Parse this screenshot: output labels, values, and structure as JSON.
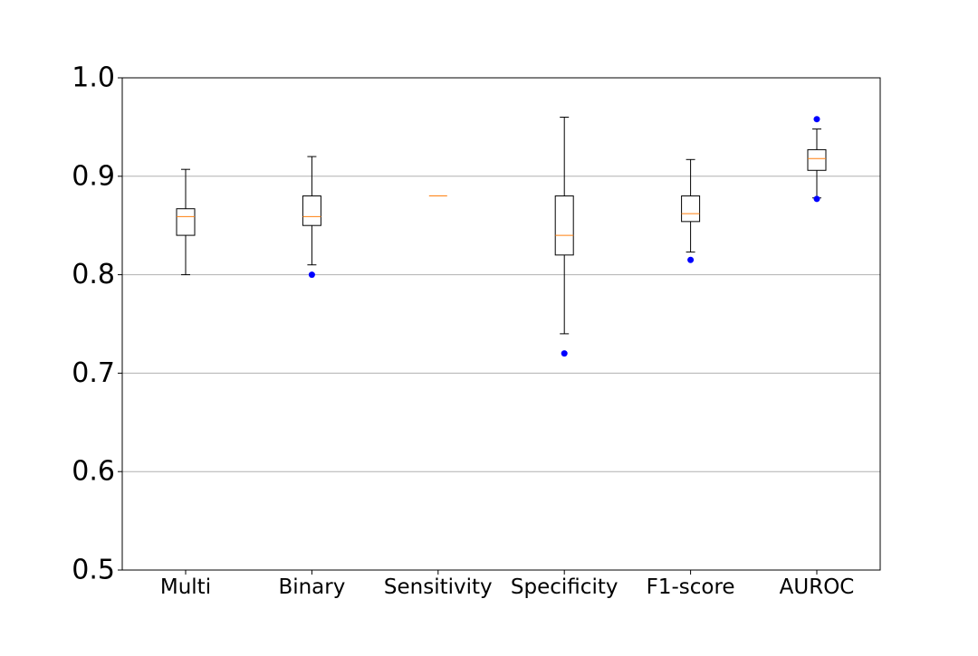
{
  "chart_data": {
    "type": "box",
    "title": "",
    "xlabel": "",
    "ylabel": "",
    "ylim": [
      0.5,
      1.0
    ],
    "yticks": [
      0.5,
      0.6,
      0.7,
      0.8,
      0.9,
      1.0
    ],
    "ytick_labels": [
      "0.5",
      "0.6",
      "0.7",
      "0.8",
      "0.9",
      "1.0"
    ],
    "grid": "horizontal",
    "categories": [
      "Multi",
      "Binary",
      "Sensitivity",
      "Specificity",
      "F1-score",
      "AUROC"
    ],
    "boxes": [
      {
        "q1": 0.84,
        "median": 0.859,
        "q3": 0.867,
        "whisker_low": 0.8,
        "whisker_high": 0.907,
        "outliers": []
      },
      {
        "q1": 0.85,
        "median": 0.859,
        "q3": 0.88,
        "whisker_low": 0.81,
        "whisker_high": 0.92,
        "outliers": [
          0.8
        ]
      },
      {
        "q1": 0.88,
        "median": 0.88,
        "q3": 0.88,
        "whisker_low": 0.88,
        "whisker_high": 0.88,
        "outliers": []
      },
      {
        "q1": 0.82,
        "median": 0.84,
        "q3": 0.88,
        "whisker_low": 0.74,
        "whisker_high": 0.96,
        "outliers": [
          0.72
        ]
      },
      {
        "q1": 0.854,
        "median": 0.862,
        "q3": 0.88,
        "whisker_low": 0.823,
        "whisker_high": 0.917,
        "outliers": [
          0.815
        ]
      },
      {
        "q1": 0.906,
        "median": 0.918,
        "q3": 0.927,
        "whisker_low": 0.878,
        "whisker_high": 0.948,
        "outliers": [
          0.958,
          0.877
        ]
      }
    ],
    "colors": {
      "box": "#000000",
      "median": "#ff7f0e",
      "outlier": "#0000ff",
      "grid": "#b0b0b0"
    }
  }
}
